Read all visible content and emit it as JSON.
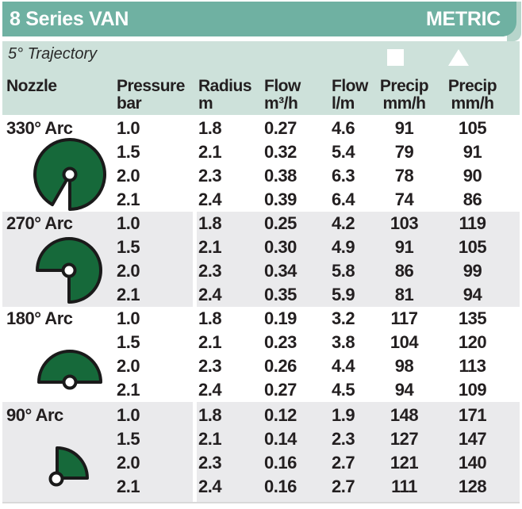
{
  "header": {
    "title": "8 Series VAN",
    "units_label": "METRIC"
  },
  "subheader": {
    "trajectory_label": "5° Trajectory",
    "markers": [
      {
        "icon": "square-marker",
        "shape": "square",
        "color": "#ffffff"
      },
      {
        "icon": "triangle-marker",
        "shape": "triangle",
        "color": "#ffffff"
      }
    ]
  },
  "chart_data": {
    "type": "table",
    "title": "8 Series VAN",
    "columns": [
      {
        "label1": "",
        "label2": "Nozzle"
      },
      {
        "label1": "Pressure",
        "label2": "bar"
      },
      {
        "label1": "Radius",
        "label2": "m"
      },
      {
        "label1": "Flow",
        "label2": "m³/h"
      },
      {
        "label1": "Flow",
        "label2": "l/m"
      },
      {
        "label1": "Precip",
        "label2": "mm/h",
        "marker": "square"
      },
      {
        "label1": "Precip",
        "label2": "mm/h",
        "marker": "triangle"
      }
    ],
    "sections": [
      {
        "arc_label": "330° Arc",
        "arc_degrees": 330,
        "shaded": false,
        "rows": [
          [
            "1.0",
            "1.8",
            "0.27",
            "4.6",
            "91",
            "105"
          ],
          [
            "1.5",
            "2.1",
            "0.32",
            "5.4",
            "79",
            "91"
          ],
          [
            "2.0",
            "2.3",
            "0.38",
            "6.3",
            "78",
            "90"
          ],
          [
            "2.1",
            "2.4",
            "0.39",
            "6.4",
            "74",
            "86"
          ]
        ]
      },
      {
        "arc_label": "270° Arc",
        "arc_degrees": 270,
        "shaded": true,
        "rows": [
          [
            "1.0",
            "1.8",
            "0.25",
            "4.2",
            "103",
            "119"
          ],
          [
            "1.5",
            "2.1",
            "0.30",
            "4.9",
            "91",
            "105"
          ],
          [
            "2.0",
            "2.3",
            "0.34",
            "5.8",
            "86",
            "99"
          ],
          [
            "2.1",
            "2.4",
            "0.35",
            "5.9",
            "81",
            "94"
          ]
        ]
      },
      {
        "arc_label": "180° Arc",
        "arc_degrees": 180,
        "shaded": false,
        "rows": [
          [
            "1.0",
            "1.8",
            "0.19",
            "3.2",
            "117",
            "135"
          ],
          [
            "1.5",
            "2.1",
            "0.23",
            "3.8",
            "104",
            "120"
          ],
          [
            "2.0",
            "2.3",
            "0.26",
            "4.4",
            "98",
            "113"
          ],
          [
            "2.1",
            "2.4",
            "0.27",
            "4.5",
            "94",
            "109"
          ]
        ]
      },
      {
        "arc_label": "90° Arc",
        "arc_degrees": 90,
        "shaded": true,
        "rows": [
          [
            "1.0",
            "1.8",
            "0.12",
            "1.9",
            "148",
            "171"
          ],
          [
            "1.5",
            "2.1",
            "0.14",
            "2.3",
            "127",
            "147"
          ],
          [
            "2.0",
            "2.3",
            "0.16",
            "2.7",
            "121",
            "140"
          ],
          [
            "2.1",
            "2.4",
            "0.16",
            "2.7",
            "111",
            "128"
          ]
        ]
      }
    ]
  },
  "colors": {
    "header_teal": "#6fb1a2",
    "subheader_teal": "#cde1da",
    "corner_teal": "#b7d5cb",
    "band_gray": "#eaeaec",
    "nozzle_green": "#16693a",
    "outline_black": "#1a1a1a",
    "text": "#231f20"
  }
}
